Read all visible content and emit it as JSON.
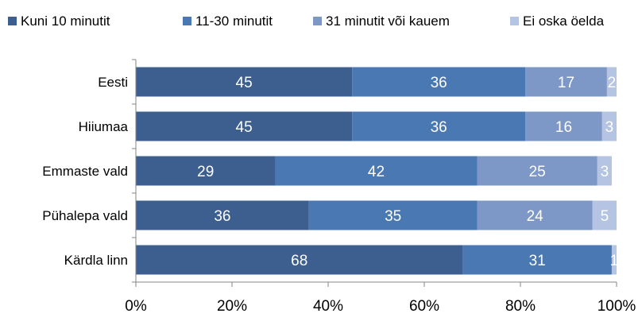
{
  "chart_data": {
    "type": "bar",
    "orientation": "horizontal",
    "stacked": true,
    "percent_axis": true,
    "legend_position": "top",
    "grid": false,
    "title": "",
    "xlabel": "",
    "ylabel": "",
    "xlim": [
      0,
      100
    ],
    "x_ticks": [
      "0%",
      "20%",
      "40%",
      "60%",
      "80%",
      "100%"
    ],
    "categories": [
      "Eesti",
      "Hiiumaa",
      "Emmaste vald",
      "Pühalepa vald",
      "Kärdla linn"
    ],
    "series": [
      {
        "name": "Kuni 10 minutit",
        "color": "#3d5f8f",
        "values": [
          45,
          45,
          29,
          36,
          68
        ],
        "labels": [
          "45",
          "45",
          "29",
          "36",
          "68"
        ]
      },
      {
        "name": "11-30 minutit",
        "color": "#4a78b3",
        "values": [
          36,
          36,
          42,
          35,
          31
        ],
        "labels": [
          "36",
          "36",
          "42",
          "35",
          "31"
        ]
      },
      {
        "name": "31 minutit või kauem",
        "color": "#7d98c6",
        "values": [
          17,
          16,
          25,
          24,
          0
        ],
        "labels": [
          "17",
          "16",
          "25",
          "24",
          ""
        ]
      },
      {
        "name": "Ei oska öelda",
        "color": "#b4c4e2",
        "values": [
          2,
          3,
          3,
          5,
          1
        ],
        "labels": [
          "2",
          "3",
          "3",
          "5",
          "1"
        ]
      }
    ]
  }
}
